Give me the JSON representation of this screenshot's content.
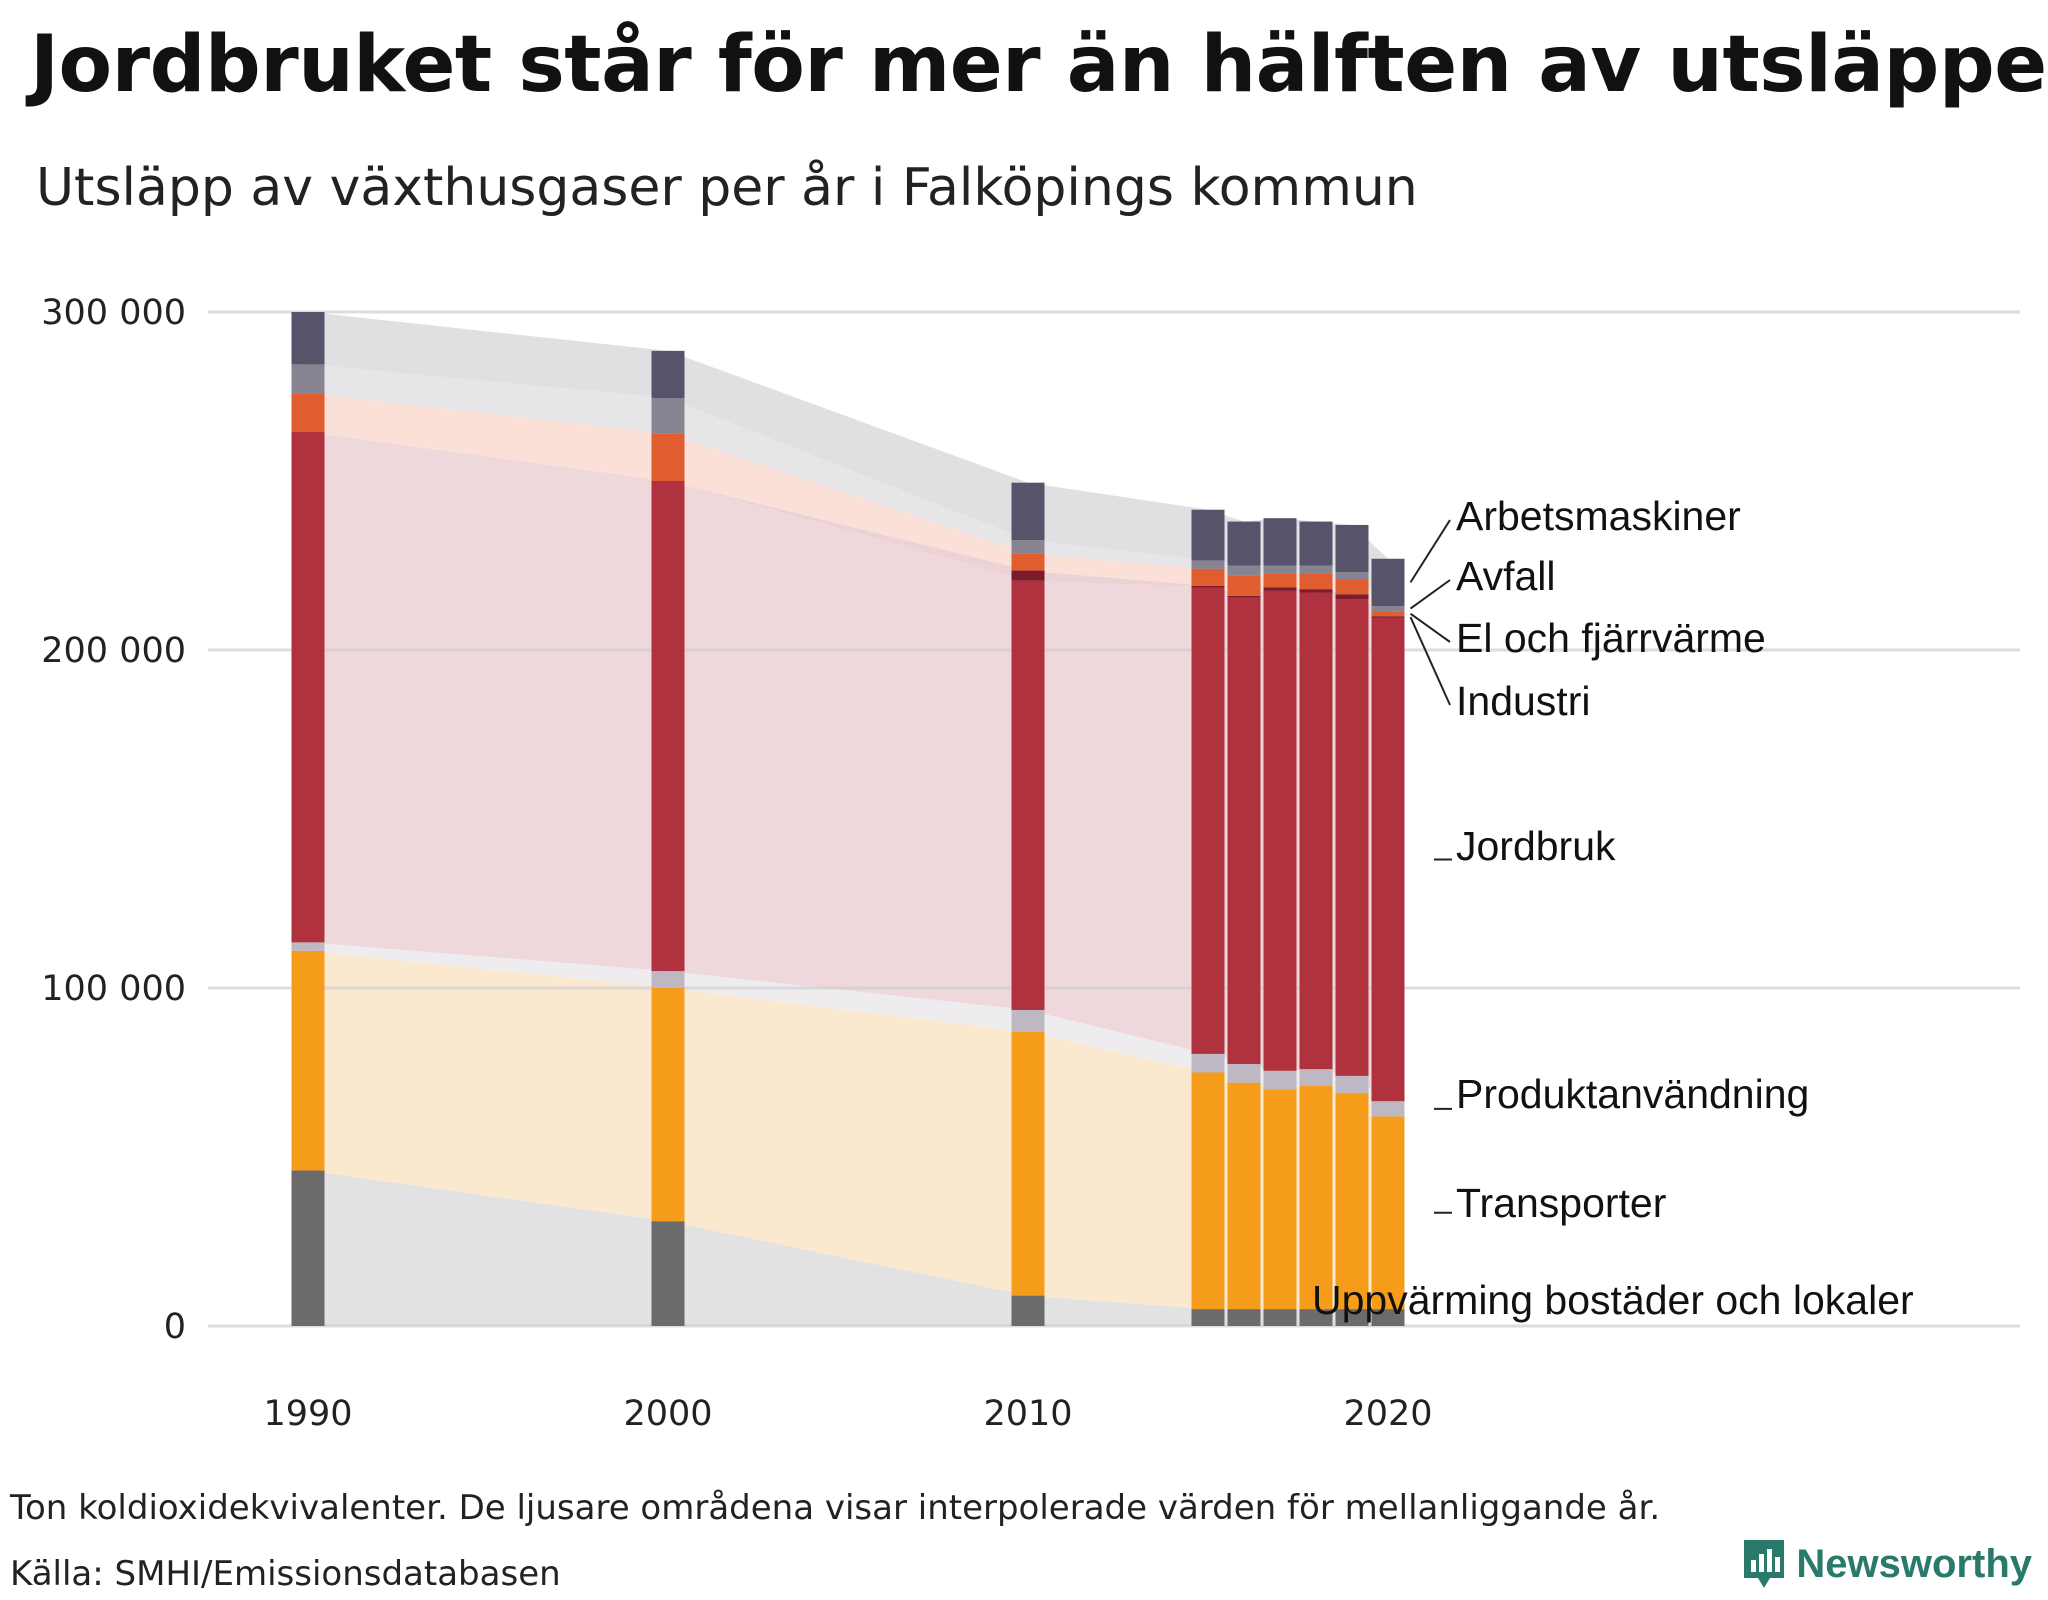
{
  "title": "Jordbruket står för mer än hälften av utsläppen",
  "subtitle": "Utsläpp av växthusgaser per år i Falköpings kommun",
  "note": "Ton koldioxidekvivalenter. De ljusare områdena visar interpolerade värden för mellanliggande år.",
  "source": "Källa: SMHI/Emissionsdatabasen",
  "brand": "Newsworthy",
  "chart_data": {
    "type": "bar",
    "stacked": true,
    "title": "Utsläpp av växthusgaser per år i Falköpings kommun",
    "ylabel": "Ton koldioxidekvivalenter",
    "ylim": [
      0,
      300000
    ],
    "yticks": [
      0,
      100000,
      200000,
      300000
    ],
    "ytick_labels": [
      "0",
      "100 000",
      "200 000",
      "300 000"
    ],
    "xticks": [
      1990,
      2000,
      2010,
      2020
    ],
    "xtick_labels": [
      "1990",
      "2000",
      "2010",
      "2020"
    ],
    "years": [
      1990,
      2000,
      2010,
      2015,
      2016,
      2017,
      2018,
      2019,
      2020
    ],
    "series": [
      {
        "name": "Uppvärming bostäder och lokaler",
        "color": "#6b6b6b",
        "light": "#e2e2e2",
        "values": [
          46000,
          31000,
          9000,
          5000,
          5000,
          5000,
          5000,
          5000,
          5000
        ]
      },
      {
        "name": "Transporter",
        "color": "#f59d1a",
        "light": "#fbe9cf",
        "values": [
          65000,
          69000,
          78000,
          70000,
          67000,
          65000,
          66000,
          64000,
          57000
        ]
      },
      {
        "name": "Produktanvändning",
        "color": "#bdb8c4",
        "light": "#efecf0",
        "values": [
          2500,
          5000,
          6500,
          5500,
          5500,
          5500,
          5000,
          5000,
          4500
        ]
      },
      {
        "name": "Jordbruk",
        "color": "#b0323e",
        "light": "#eed8db",
        "values": [
          151000,
          145000,
          127000,
          138000,
          138000,
          142000,
          141000,
          141000,
          143000
        ]
      },
      {
        "name": "Industri",
        "color": "#7d1a2b",
        "light": "#ecd2d6",
        "values": [
          0,
          0,
          3000,
          500,
          500,
          1000,
          1000,
          1500,
          500
        ]
      },
      {
        "name": "El och fjärrvärme",
        "color": "#e05d30",
        "light": "#fbe0d8",
        "values": [
          11500,
          14000,
          5000,
          5000,
          6000,
          4000,
          4500,
          4500,
          1500
        ]
      },
      {
        "name": "Avfall",
        "color": "#888391",
        "light": "#e6e5e8",
        "values": [
          8500,
          10500,
          4000,
          2500,
          3000,
          2500,
          2500,
          2000,
          1500
        ]
      },
      {
        "name": "Arbetsmaskiner",
        "color": "#56536a",
        "light": "#e0dfe2",
        "values": [
          15500,
          14000,
          17000,
          15000,
          13000,
          14000,
          13000,
          14000,
          14000
        ]
      }
    ]
  }
}
